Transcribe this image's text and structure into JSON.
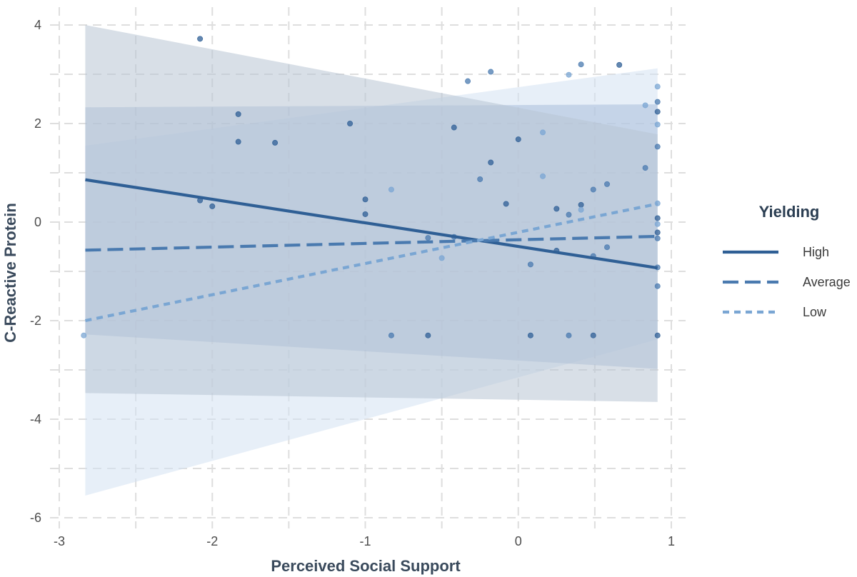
{
  "chart_data": {
    "type": "scatter",
    "xlabel": "Perceived Social Support",
    "ylabel": "C-Reactive Protein",
    "xlim": [
      -3,
      1
    ],
    "ylim": [
      -6,
      4
    ],
    "x_ticks": [
      "-3",
      "-2",
      "-1",
      "0",
      "1"
    ],
    "y_ticks": [
      "-6",
      "-4",
      "-2",
      "0",
      "2",
      "4"
    ],
    "grid": true,
    "legend": {
      "title": "Yielding",
      "placement": "right",
      "entries": [
        "High",
        "Average",
        "Low"
      ]
    },
    "series": [
      {
        "name": "High",
        "color": "#2f5f95",
        "line_style": "solid",
        "line": {
          "x": [
            -2.83,
            0.91
          ],
          "y": [
            0.86,
            -0.93
          ]
        },
        "band": {
          "x": [
            -2.83,
            0.91
          ],
          "lower": [
            -3.47,
            -3.65
          ],
          "upper": [
            4.0,
            1.78
          ],
          "color": "#b8c5d4"
        }
      },
      {
        "name": "Average",
        "color": "#4a7aaf",
        "line_style": "dashed",
        "line": {
          "x": [
            -2.83,
            0.91
          ],
          "y": [
            -0.57,
            -0.29
          ]
        },
        "band": {
          "x": [
            -2.83,
            0.91
          ],
          "lower": [
            -2.28,
            -2.98
          ],
          "upper": [
            2.33,
            2.39
          ],
          "color": "#a9bedb"
        }
      },
      {
        "name": "Low",
        "color": "#7aa6d3",
        "line_style": "dotted",
        "line": {
          "x": [
            -2.83,
            0.91
          ],
          "y": [
            -2.0,
            0.37
          ]
        },
        "band": {
          "x": [
            -2.83,
            0.91
          ],
          "lower": [
            -5.55,
            -2.38
          ],
          "upper": [
            1.55,
            3.12
          ],
          "color": "#d3e1f2"
        }
      }
    ],
    "points": [
      {
        "x": -2.08,
        "y": 3.72,
        "g": "High"
      },
      {
        "x": -2.08,
        "y": 0.44,
        "g": "High"
      },
      {
        "x": -2.0,
        "y": 0.32,
        "g": "High"
      },
      {
        "x": -1.83,
        "y": 2.19,
        "g": "High"
      },
      {
        "x": -1.83,
        "y": 1.63,
        "g": "High"
      },
      {
        "x": -1.59,
        "y": 1.61,
        "g": "High"
      },
      {
        "x": -1.1,
        "y": 2.0,
        "g": "High"
      },
      {
        "x": -1.0,
        "y": 0.46,
        "g": "High"
      },
      {
        "x": -1.0,
        "y": 0.16,
        "g": "High"
      },
      {
        "x": -0.83,
        "y": 0.66,
        "g": "Low"
      },
      {
        "x": -0.83,
        "y": -2.3,
        "g": "Average"
      },
      {
        "x": -0.59,
        "y": -0.32,
        "g": "Average"
      },
      {
        "x": -0.59,
        "y": -2.3,
        "g": "High"
      },
      {
        "x": -0.5,
        "y": -0.73,
        "g": "Low"
      },
      {
        "x": -0.42,
        "y": 1.92,
        "g": "High"
      },
      {
        "x": -0.42,
        "y": -0.3,
        "g": "Average"
      },
      {
        "x": -0.33,
        "y": 2.86,
        "g": "Average"
      },
      {
        "x": -0.25,
        "y": 0.87,
        "g": "Average"
      },
      {
        "x": -0.18,
        "y": 3.05,
        "g": "Average"
      },
      {
        "x": -0.18,
        "y": 1.21,
        "g": "High"
      },
      {
        "x": -0.08,
        "y": 0.37,
        "g": "High"
      },
      {
        "x": 0.0,
        "y": 1.68,
        "g": "High"
      },
      {
        "x": 0.08,
        "y": -0.86,
        "g": "Average"
      },
      {
        "x": 0.08,
        "y": -2.3,
        "g": "High"
      },
      {
        "x": 0.16,
        "y": 1.82,
        "g": "Low"
      },
      {
        "x": 0.16,
        "y": 0.93,
        "g": "Low"
      },
      {
        "x": 0.25,
        "y": 0.27,
        "g": "High"
      },
      {
        "x": 0.25,
        "y": -0.58,
        "g": "High"
      },
      {
        "x": 0.33,
        "y": 2.99,
        "g": "Low"
      },
      {
        "x": 0.33,
        "y": 0.15,
        "g": "Average"
      },
      {
        "x": 0.33,
        "y": -2.3,
        "g": "Average"
      },
      {
        "x": 0.41,
        "y": 3.2,
        "g": "Average"
      },
      {
        "x": 0.41,
        "y": 0.35,
        "g": "High"
      },
      {
        "x": 0.41,
        "y": 0.25,
        "g": "Low"
      },
      {
        "x": 0.49,
        "y": 0.66,
        "g": "Average"
      },
      {
        "x": 0.49,
        "y": -0.69,
        "g": "Average"
      },
      {
        "x": 0.49,
        "y": -2.3,
        "g": "High"
      },
      {
        "x": 0.58,
        "y": 0.77,
        "g": "Average"
      },
      {
        "x": 0.58,
        "y": -0.51,
        "g": "Average"
      },
      {
        "x": 0.66,
        "y": 3.19,
        "g": "High"
      },
      {
        "x": 0.83,
        "y": 2.37,
        "g": "Low"
      },
      {
        "x": 0.83,
        "y": 1.1,
        "g": "Average"
      },
      {
        "x": 0.91,
        "y": 2.75,
        "g": "Low"
      },
      {
        "x": 0.91,
        "y": 2.44,
        "g": "Average"
      },
      {
        "x": 0.91,
        "y": 2.24,
        "g": "High"
      },
      {
        "x": 0.91,
        "y": 1.98,
        "g": "Low"
      },
      {
        "x": 0.91,
        "y": 1.53,
        "g": "Average"
      },
      {
        "x": 0.91,
        "y": 0.38,
        "g": "Low"
      },
      {
        "x": 0.91,
        "y": 0.08,
        "g": "High"
      },
      {
        "x": 0.91,
        "y": -0.04,
        "g": "Low"
      },
      {
        "x": 0.91,
        "y": -0.21,
        "g": "High"
      },
      {
        "x": 0.91,
        "y": -0.33,
        "g": "Average"
      },
      {
        "x": 0.91,
        "y": -0.92,
        "g": "Average"
      },
      {
        "x": 0.91,
        "y": -1.3,
        "g": "Average"
      },
      {
        "x": 0.91,
        "y": -2.3,
        "g": "High"
      },
      {
        "x": -2.84,
        "y": -2.3,
        "g": "Low"
      }
    ]
  }
}
